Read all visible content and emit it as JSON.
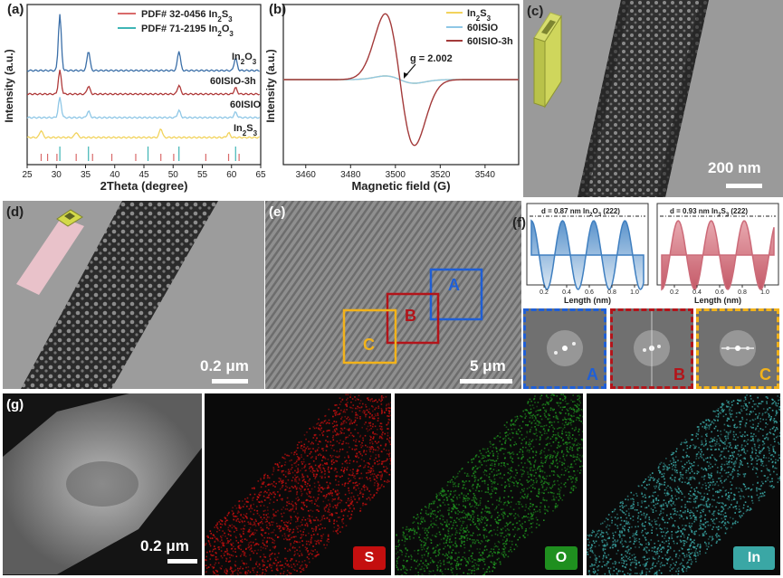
{
  "panels": {
    "a": {
      "label": "(a)",
      "chart_data": {
        "type": "line",
        "xlabel": "2Theta (degree)",
        "ylabel": "Intensity (a.u.)",
        "xlim": [
          25,
          65
        ],
        "xticks": [
          "25",
          "30",
          "35",
          "40",
          "45",
          "50",
          "55",
          "60",
          "65"
        ],
        "legend": [
          "PDF# 32-0456 In2S3",
          "PDF# 71-2195 In2O3"
        ],
        "series": [
          {
            "name": "In2O3",
            "color": "#3b6fa8"
          },
          {
            "name": "60ISIO-3h",
            "color": "#b03a3a"
          },
          {
            "name": "60ISIO",
            "color": "#8fc7e6"
          },
          {
            "name": "In2S3",
            "color": "#f2d35c"
          }
        ],
        "peaks_In2O3": [
          30.6,
          35.5,
          51.0,
          60.7
        ],
        "peaks_In2S3": [
          27.4,
          33.4,
          47.9,
          59.5
        ]
      }
    },
    "b": {
      "label": "(b)",
      "chart_data": {
        "type": "line",
        "xlabel": "Magnetic field (G)",
        "ylabel": "Intensity (a.u.)",
        "xlim": [
          3450,
          3555
        ],
        "xticks": [
          "3460",
          "3480",
          "3500",
          "3520",
          "3540"
        ],
        "annotation": "g = 2.002",
        "series": [
          {
            "name": "In2S3",
            "color": "#f2d35c"
          },
          {
            "name": "60ISIO",
            "color": "#8fc7e6"
          },
          {
            "name": "60ISIO-3h",
            "color": "#a33a3a"
          }
        ]
      }
    },
    "c": {
      "label": "(c)",
      "scale": "200 nm"
    },
    "d": {
      "label": "(d)",
      "scale": "0.2 μm"
    },
    "e": {
      "label": "(e)",
      "scale": "5 μm",
      "regions": [
        "A",
        "B",
        "C"
      ]
    },
    "f": {
      "label": "(f)",
      "left_title": "d = 0.87 nm In2O3 (222)",
      "right_title": "d = 0.93 nm In2S3 (222)",
      "xlabel": "Length (nm)",
      "xticks_left": [
        "0.2",
        "0.4",
        "0.6",
        "0.8",
        "1.0"
      ],
      "xticks_right": [
        "0.2",
        "0.4",
        "0.6",
        "0.8",
        "1.0"
      ],
      "fft_labels": [
        "A",
        "B",
        "C"
      ]
    },
    "g": {
      "label": "(g)",
      "scale": "0.2 μm",
      "elements": [
        "S",
        "O",
        "In"
      ]
    }
  },
  "colors": {
    "blue": "#1f5fd6",
    "red": "#b3141a",
    "yellow": "#f2b21a",
    "S": "#c40f0f",
    "O": "#1f8f1f",
    "In": "#3aa7a5"
  }
}
